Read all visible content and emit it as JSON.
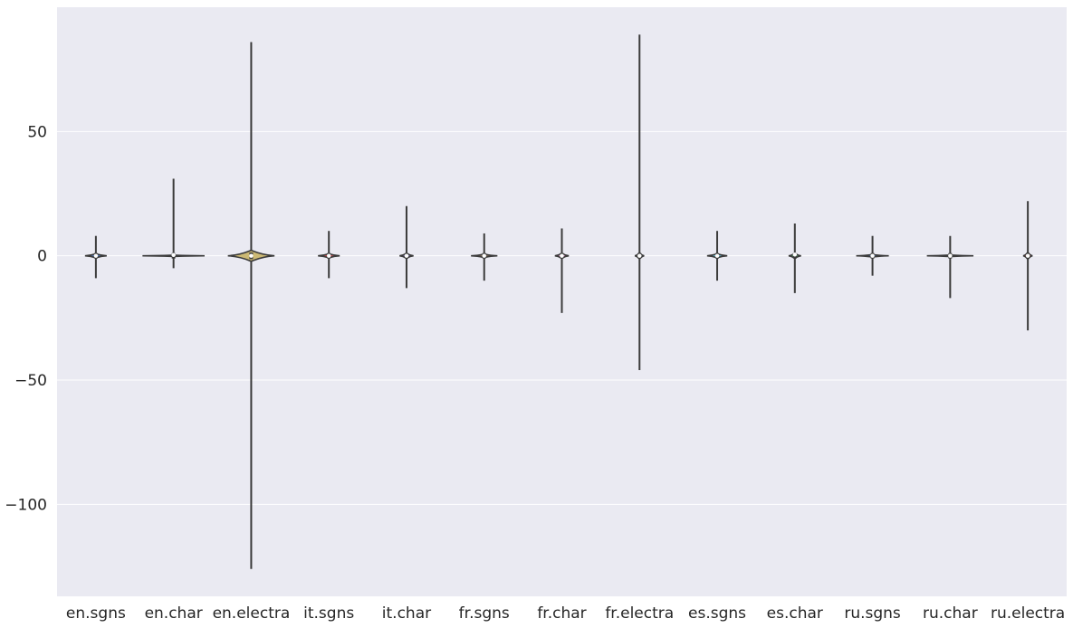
{
  "chart_data": {
    "type": "violin",
    "title": "",
    "xlabel": "",
    "ylabel": "",
    "ylim": [
      -137,
      100
    ],
    "yticks": [
      50,
      0,
      -50,
      -100
    ],
    "ytick_labels": [
      "50",
      "0",
      "−50",
      "−100"
    ],
    "grid": true,
    "categories": [
      "en.sgns",
      "en.char",
      "en.electra",
      "it.sgns",
      "it.char",
      "fr.sgns",
      "fr.char",
      "fr.electra",
      "es.sgns",
      "es.char",
      "ru.sgns",
      "ru.char",
      "ru.electra"
    ],
    "violins": [
      {
        "min": -9,
        "max": 8,
        "half_width": 0.14,
        "spread": 0.8,
        "median": 0,
        "fill": "#4c72b0"
      },
      {
        "min": -5,
        "max": 31,
        "half_width": 0.4,
        "spread": 0.25,
        "median": 0.3,
        "fill": "#dd8452"
      },
      {
        "min": -126,
        "max": 86,
        "half_width": 0.3,
        "spread": 2.2,
        "median": 0,
        "fill": "#ccb974"
      },
      {
        "min": -9,
        "max": 10,
        "half_width": 0.14,
        "spread": 0.8,
        "median": 0,
        "fill": "#c44e52"
      },
      {
        "min": -13,
        "max": 20,
        "half_width": 0.09,
        "spread": 1,
        "median": 0,
        "fill": "#8172b3"
      },
      {
        "min": -10,
        "max": 9,
        "half_width": 0.17,
        "spread": 0.7,
        "median": 0,
        "fill": "#937860"
      },
      {
        "min": -23,
        "max": 11,
        "half_width": 0.09,
        "spread": 1,
        "median": 0,
        "fill": "#da8bc3"
      },
      {
        "min": -46,
        "max": 89,
        "half_width": 0.06,
        "spread": 1.3,
        "median": 0,
        "fill": "#8c8c8c"
      },
      {
        "min": -10,
        "max": 10,
        "half_width": 0.13,
        "spread": 0.8,
        "median": 0,
        "fill": "#64b5cd"
      },
      {
        "min": -15,
        "max": 13,
        "half_width": 0.08,
        "spread": 1.1,
        "median": 0.5,
        "fill": "#55a868"
      },
      {
        "min": -8,
        "max": 8,
        "half_width": 0.21,
        "spread": 0.5,
        "median": 0,
        "fill": "#4c72b0"
      },
      {
        "min": -17,
        "max": 8,
        "half_width": 0.3,
        "spread": 0.3,
        "median": 0,
        "fill": "#dd8452"
      },
      {
        "min": -30,
        "max": 22,
        "half_width": 0.06,
        "spread": 1.4,
        "median": 0,
        "fill": "#c44e52"
      }
    ],
    "colors": {
      "plot_bg": "#eaeaf2",
      "grid": "#ffffff",
      "outline": "#3b3b3b",
      "text": "#262626"
    }
  }
}
